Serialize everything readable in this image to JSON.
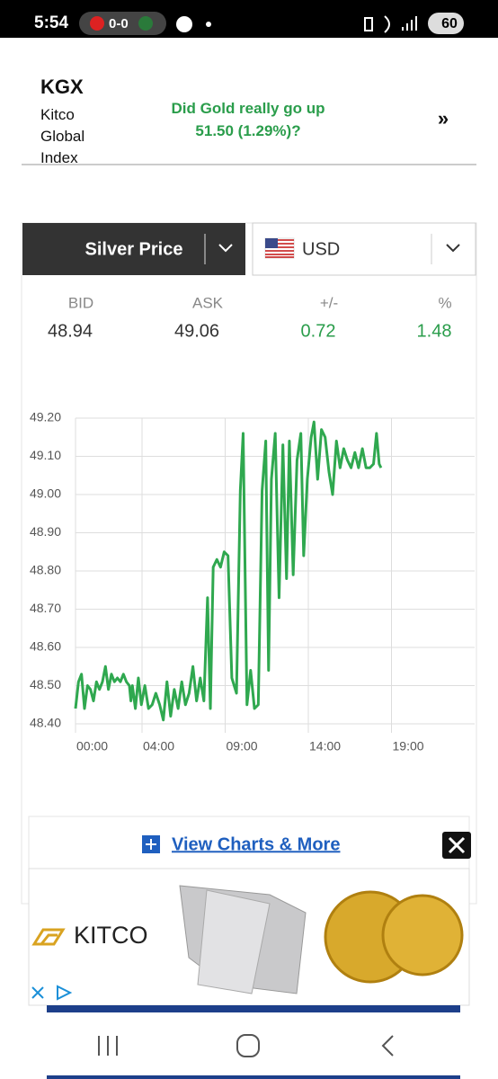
{
  "status_bar": {
    "time": "5:54",
    "score": "0-0",
    "battery": "60"
  },
  "header": {
    "symbol": "KGX",
    "name": "Kitco Global Index",
    "headline": "Did Gold really go up 51.50 (1.29%)?"
  },
  "selector": {
    "metal": "Silver Price",
    "currency": "USD"
  },
  "quote": {
    "labels": [
      "BID",
      "ASK",
      "+/-",
      "%"
    ],
    "values": [
      48.94,
      49.06,
      0.72,
      1.48
    ]
  },
  "chart_data": {
    "type": "line",
    "color": "#2fa84f",
    "grid": true,
    "x": [
      0,
      0.18,
      0.36,
      0.54,
      0.72,
      0.9,
      1.08,
      1.26,
      1.44,
      1.62,
      1.8,
      1.98,
      2.16,
      2.34,
      2.52,
      2.7,
      2.88,
      3.06,
      3.24,
      3.33,
      3.42,
      3.6,
      3.78,
      3.96,
      4.17,
      4.39,
      4.61,
      4.83,
      5.06,
      5.28,
      5.5,
      5.72,
      5.94,
      6.17,
      6.39,
      6.61,
      6.83,
      7.06,
      7.28,
      7.5,
      7.72,
      7.94,
      8.11,
      8.28,
      8.5,
      8.72,
      8.94,
      9.17,
      9.4,
      9.68,
      9.91,
      10.08,
      10.31,
      10.53,
      10.76,
      10.99,
      11.22,
      11.44,
      11.61,
      11.78,
      12.01,
      12.24,
      12.47,
      12.69,
      12.86,
      13.09,
      13.32,
      13.55,
      13.72,
      13.94,
      14.17,
      14.34,
      14.56,
      14.79,
      15.01,
      15.24,
      15.46,
      15.69,
      15.91,
      16.13,
      16.35,
      16.57,
      16.8,
      17.02,
      17.25,
      17.47,
      17.7,
      17.92,
      18.1,
      18.26,
      18.37
    ],
    "values": [
      48.44,
      48.51,
      48.53,
      48.44,
      48.5,
      48.49,
      48.46,
      48.51,
      48.49,
      48.51,
      48.55,
      48.49,
      48.53,
      48.51,
      48.52,
      48.51,
      48.53,
      48.51,
      48.5,
      48.46,
      48.5,
      48.44,
      48.52,
      48.45,
      48.5,
      48.44,
      48.45,
      48.48,
      48.45,
      48.41,
      48.51,
      48.42,
      48.49,
      48.44,
      48.51,
      48.45,
      48.48,
      48.55,
      48.46,
      48.52,
      48.46,
      48.73,
      48.44,
      48.81,
      48.83,
      48.81,
      48.85,
      48.84,
      48.52,
      48.48,
      49.01,
      49.16,
      48.45,
      48.54,
      48.44,
      48.45,
      49.01,
      49.14,
      48.54,
      49.04,
      49.16,
      48.73,
      49.13,
      48.78,
      49.14,
      48.79,
      49.09,
      49.16,
      48.84,
      49.04,
      49.15,
      49.19,
      49.04,
      49.17,
      49.15,
      49.06,
      49.0,
      49.14,
      49.07,
      49.12,
      49.09,
      49.07,
      49.11,
      49.07,
      49.12,
      49.07,
      49.07,
      49.08,
      49.16,
      49.08,
      49.07
    ],
    "xlim": [
      0,
      24
    ],
    "xticks": [
      {
        "value": 0,
        "label": "00:00"
      },
      {
        "value": 4,
        "label": "04:00"
      },
      {
        "value": 9,
        "label": "09:00"
      },
      {
        "value": 14,
        "label": "14:00"
      },
      {
        "value": 19,
        "label": "19:00"
      }
    ],
    "ylim": [
      48.4,
      49.2
    ],
    "yticks": [
      {
        "value": 48.4,
        "label": "48.40"
      },
      {
        "value": 48.5,
        "label": "48.50"
      },
      {
        "value": 48.6,
        "label": "48.60"
      },
      {
        "value": 48.7,
        "label": "48.70"
      },
      {
        "value": 48.8,
        "label": "48.80"
      },
      {
        "value": 48.9,
        "label": "48.90"
      },
      {
        "value": 49,
        "label": "49.00"
      },
      {
        "value": 49.1,
        "label": "49.10"
      },
      {
        "value": 49.2,
        "label": "49.20"
      }
    ]
  },
  "ad": {
    "link": "View Charts & More",
    "brand": "KITCO"
  }
}
